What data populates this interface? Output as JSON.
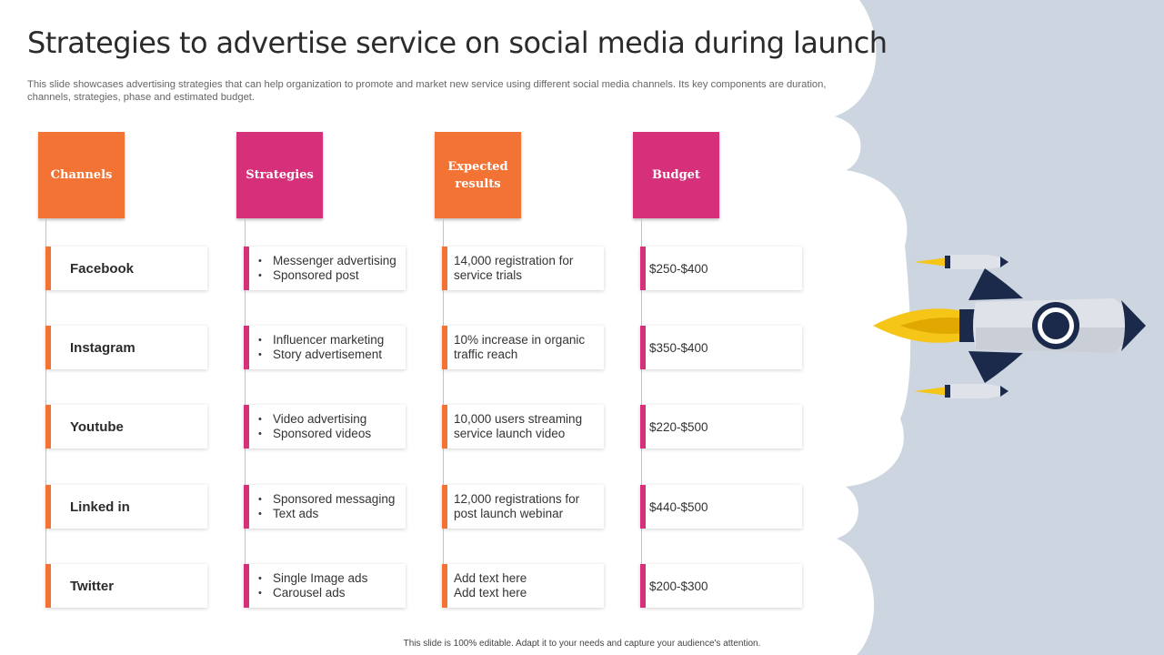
{
  "title": "Strategies to advertise service on social media during launch",
  "subtitle": "This slide showcases advertising strategies that can help organization to promote and market new service using different social media channels. Its key components are duration, channels, strategies, phase and estimated budget.",
  "colors": {
    "orange": "#f37335",
    "pink": "#d6307a",
    "panel": "#ccd5e0",
    "rocket_navy": "#1b2a4a",
    "flame": "#f5c518"
  },
  "headers": {
    "channels": "Channels",
    "strategies": "Strategies",
    "results_line1": "Expected",
    "results_line2": "results",
    "budget": "Budget"
  },
  "rows": [
    {
      "channel": "Facebook",
      "strategies": [
        "Messenger advertising",
        "Sponsored post"
      ],
      "results": [
        "14,000 registration for",
        "service trials"
      ],
      "budget": "$250-$400"
    },
    {
      "channel": "Instagram",
      "strategies": [
        "Influencer marketing",
        "Story advertisement"
      ],
      "results": [
        "10% increase in organic",
        "traffic reach"
      ],
      "budget": "$350-$400"
    },
    {
      "channel": "Youtube",
      "strategies": [
        "Video advertising",
        "Sponsored videos"
      ],
      "results": [
        "10,000 users streaming",
        "service launch video"
      ],
      "budget": "$220-$500"
    },
    {
      "channel": "Linked in",
      "strategies": [
        "Sponsored messaging",
        "Text ads"
      ],
      "results": [
        "12,000 registrations for",
        "post launch webinar"
      ],
      "budget": "$440-$500"
    },
    {
      "channel": "Twitter",
      "strategies": [
        "Single Image ads",
        "Carousel ads"
      ],
      "results": [
        "Add text here",
        "Add text here"
      ],
      "budget": "$200-$300"
    }
  ],
  "footer": "This slide is 100% editable.  Adapt it to your needs and capture your audience's attention.",
  "illustration": {
    "icon": "rocket-icon"
  }
}
